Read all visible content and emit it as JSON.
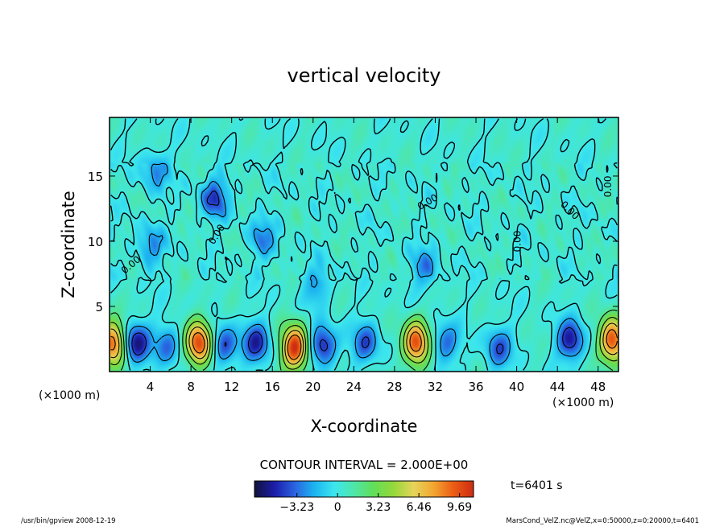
{
  "chart_data": {
    "type": "heatmap",
    "title": "vertical velocity",
    "xlabel": "X-coordinate",
    "ylabel": "Z-coordinate",
    "x_unit_left": "(×1000 m)",
    "x_unit_right": "(×1000 m)",
    "xlim": [
      0,
      50
    ],
    "ylim": [
      0,
      19.5
    ],
    "x_ticks": [
      4,
      8,
      12,
      16,
      20,
      24,
      28,
      32,
      36,
      40,
      44,
      48
    ],
    "y_ticks": [
      5,
      10,
      15
    ],
    "contour_interval_text": "CONTOUR INTERVAL = 2.000E+00",
    "contour_labels": [
      {
        "text": "0.00",
        "x": 2.3,
        "z": 8.0,
        "angle": -40
      },
      {
        "text": "0.00",
        "x": 10.8,
        "z": 10.4,
        "angle": -58
      },
      {
        "text": "0.00",
        "x": 31.4,
        "z": 12.8,
        "angle": -30
      },
      {
        "text": "0.00",
        "x": 40.4,
        "z": 10.0,
        "angle": -90
      },
      {
        "text": "0.00",
        "x": 45.0,
        "z": 12.2,
        "angle": 45
      },
      {
        "text": "0.00",
        "x": 49.3,
        "z": 14.2,
        "angle": -90
      }
    ],
    "colorbar": {
      "ticks": [
        {
          "label": "−3.23",
          "value": -3.23
        },
        {
          "label": "0",
          "value": 0
        },
        {
          "label": "3.23",
          "value": 3.23
        },
        {
          "label": "6.46",
          "value": 6.46
        },
        {
          "label": "9.69",
          "value": 9.69
        }
      ],
      "min": -6.6,
      "max": 10.8
    },
    "updrafts": [
      {
        "x": 0.3,
        "z": 2.2,
        "peak": 9.0
      },
      {
        "x": 8.8,
        "z": 2.2,
        "peak": 10.0
      },
      {
        "x": 18.2,
        "z": 1.8,
        "peak": 10.5
      },
      {
        "x": 30.1,
        "z": 2.2,
        "peak": 9.5
      },
      {
        "x": 49.4,
        "z": 2.4,
        "peak": 9.8
      }
    ],
    "downdrafts": [
      {
        "x": 2.6,
        "z": 2.2,
        "peak": -6.0
      },
      {
        "x": 5.7,
        "z": 2.0,
        "peak": -3.5
      },
      {
        "x": 11.3,
        "z": 2.0,
        "peak": -4.5
      },
      {
        "x": 14.4,
        "z": 2.2,
        "peak": -5.0
      },
      {
        "x": 21.0,
        "z": 2.0,
        "peak": -5.5
      },
      {
        "x": 25.2,
        "z": 2.2,
        "peak": -4.0
      },
      {
        "x": 33.0,
        "z": 2.2,
        "peak": -3.5
      },
      {
        "x": 38.2,
        "z": 1.8,
        "peak": -4.0
      },
      {
        "x": 45.3,
        "z": 2.4,
        "peak": -5.5
      },
      {
        "x": 10.3,
        "z": 13.3,
        "peak": -4.5
      },
      {
        "x": 4.5,
        "z": 15.3,
        "peak": -3.0
      },
      {
        "x": 4.0,
        "z": 9.6,
        "peak": -3.0
      },
      {
        "x": 15.0,
        "z": 10.2,
        "peak": -3.0
      },
      {
        "x": 31.0,
        "z": 8.0,
        "peak": -3.0
      },
      {
        "x": 20.4,
        "z": 6.6,
        "peak": -2.5
      }
    ]
  },
  "annotations": {
    "time": "t=6401 s",
    "footer_left": "/usr/bin/gpview  2008-12-19",
    "footer_right": "MarsCond_VelZ.nc@VelZ,x=0:50000,z=0:20000,t=6401"
  },
  "colors": {
    "ramp": [
      "#12123c",
      "#1c1ca8",
      "#2a62e0",
      "#1cb4f0",
      "#3ce6ee",
      "#4ee6a8",
      "#62de58",
      "#96d83a",
      "#e6d45a",
      "#f2a630",
      "#ec5c14",
      "#cc2c12"
    ],
    "frame": "#000000",
    "background": "#ffffff"
  }
}
